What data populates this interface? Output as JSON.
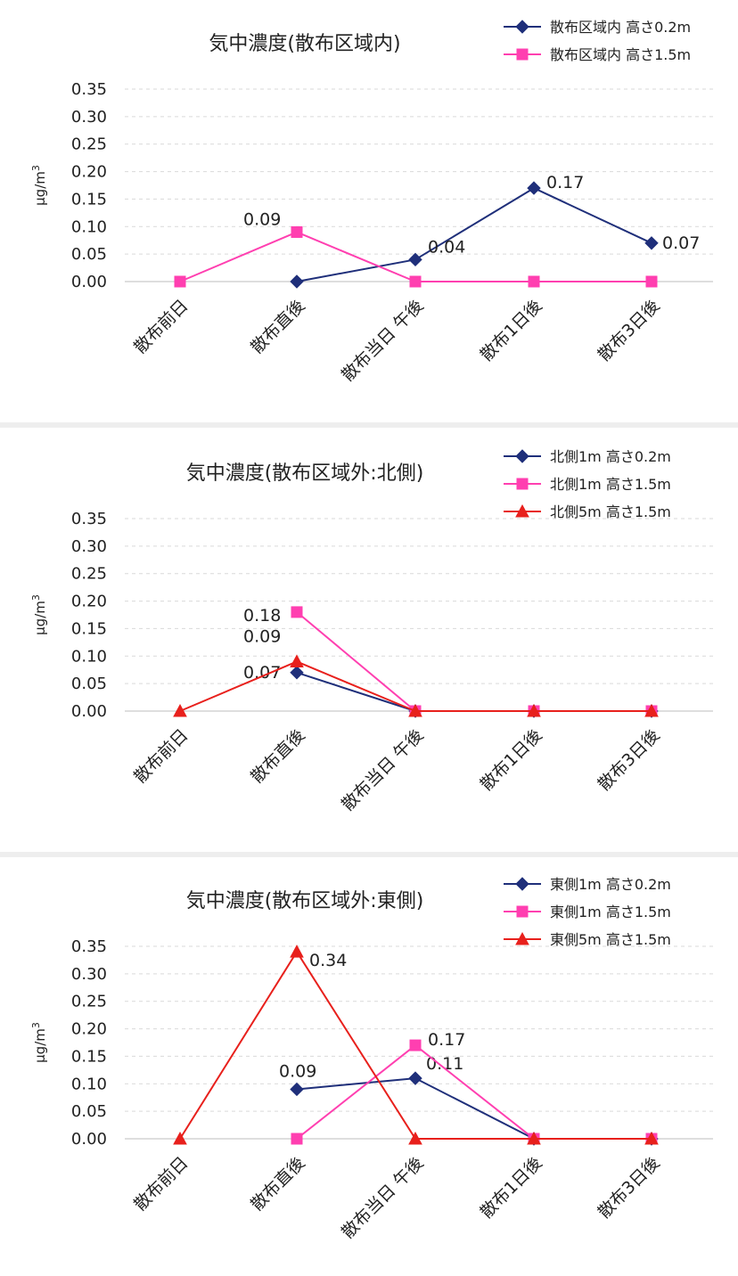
{
  "chart_data": [
    {
      "type": "line",
      "title": "気中濃度(散布区域内)",
      "ylabel": "μg/m3",
      "ylim": [
        0,
        0.35
      ],
      "yticks": [
        "0.00",
        "0.05",
        "0.10",
        "0.15",
        "0.20",
        "0.25",
        "0.30",
        "0.35"
      ],
      "categories": [
        "散布前日",
        "散布直後",
        "散布当日 午後",
        "散布1日後",
        "散布3日後"
      ],
      "legend_position": "top-right",
      "grid": true,
      "series": [
        {
          "name": "散布区域内 高さ0.2m",
          "color": "#1f2f7a",
          "marker": "diamond",
          "values": [
            null,
            0,
            0.04,
            0.17,
            0.07
          ],
          "labels": [
            "",
            "",
            "0.04",
            "0.17",
            "0.07"
          ]
        },
        {
          "name": "散布区域内 高さ1.5m",
          "color": "#ff3fb0",
          "marker": "square",
          "values": [
            0,
            0.09,
            0,
            0,
            0
          ],
          "labels": [
            "",
            "0.09",
            "",
            "",
            ""
          ]
        }
      ]
    },
    {
      "type": "line",
      "title": "気中濃度(散布区域外:北側)",
      "ylabel": "μg/m3",
      "ylim": [
        0,
        0.35
      ],
      "yticks": [
        "0.00",
        "0.05",
        "0.10",
        "0.15",
        "0.20",
        "0.25",
        "0.30",
        "0.35"
      ],
      "categories": [
        "散布前日",
        "散布直後",
        "散布当日 午後",
        "散布1日後",
        "散布3日後"
      ],
      "legend_position": "top-right",
      "grid": true,
      "series": [
        {
          "name": "北側1m 高さ0.2m",
          "color": "#1f2f7a",
          "marker": "diamond",
          "values": [
            null,
            0.07,
            0,
            0,
            0
          ],
          "labels": [
            "",
            "0.07",
            "",
            "",
            ""
          ]
        },
        {
          "name": "北側1m 高さ1.5m",
          "color": "#ff3fb0",
          "marker": "square",
          "values": [
            null,
            0.18,
            0,
            0,
            0
          ],
          "labels": [
            "",
            "0.18",
            "",
            "",
            ""
          ]
        },
        {
          "name": "北側5m 高さ1.5m",
          "color": "#e8201c",
          "marker": "triangle",
          "values": [
            0,
            0.09,
            0,
            0,
            0
          ],
          "labels": [
            "",
            "0.09",
            "",
            "",
            ""
          ]
        }
      ]
    },
    {
      "type": "line",
      "title": "気中濃度(散布区域外:東側)",
      "ylabel": "μg/m3",
      "ylim": [
        0,
        0.35
      ],
      "yticks": [
        "0.00",
        "0.05",
        "0.10",
        "0.15",
        "0.20",
        "0.25",
        "0.30",
        "0.35"
      ],
      "categories": [
        "散布前日",
        "散布直後",
        "散布当日 午後",
        "散布1日後",
        "散布3日後"
      ],
      "legend_position": "top-right",
      "grid": true,
      "series": [
        {
          "name": "東側1m 高さ0.2m",
          "color": "#1f2f7a",
          "marker": "diamond",
          "values": [
            null,
            0.09,
            0.11,
            0,
            0
          ],
          "labels": [
            "",
            "0.09",
            "0.11",
            "",
            ""
          ]
        },
        {
          "name": "東側1m 高さ1.5m",
          "color": "#ff3fb0",
          "marker": "square",
          "values": [
            null,
            0,
            0.17,
            0,
            0
          ],
          "labels": [
            "",
            "",
            "0.17",
            "",
            ""
          ]
        },
        {
          "name": "東側5m 高さ1.5m",
          "color": "#e8201c",
          "marker": "triangle",
          "values": [
            0,
            0.34,
            0,
            0,
            0
          ],
          "labels": [
            "",
            "0.34",
            "",
            "",
            ""
          ]
        }
      ]
    }
  ]
}
